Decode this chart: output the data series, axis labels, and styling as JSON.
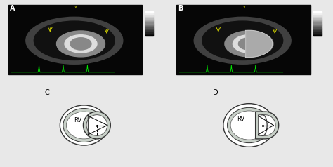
{
  "panel_labels": [
    "A",
    "B",
    "C",
    "D"
  ],
  "background_color": "#e8e8e8",
  "echo_border_color": "#cccccc",
  "echo_bg": "#000000",
  "diagram_bg": "#e8e8e8",
  "lv_wall_fill": "#c8d0c8",
  "lv_wall_edge": "#333333",
  "rv_wall_fill": "#ffffff",
  "rv_wall_edge": "#333333",
  "lv_cavity_fill": "#ffffff",
  "line_color": "#111111",
  "label_fontsize": 6,
  "annotation_fontsize": 5,
  "panel_label_fontsize": 7
}
